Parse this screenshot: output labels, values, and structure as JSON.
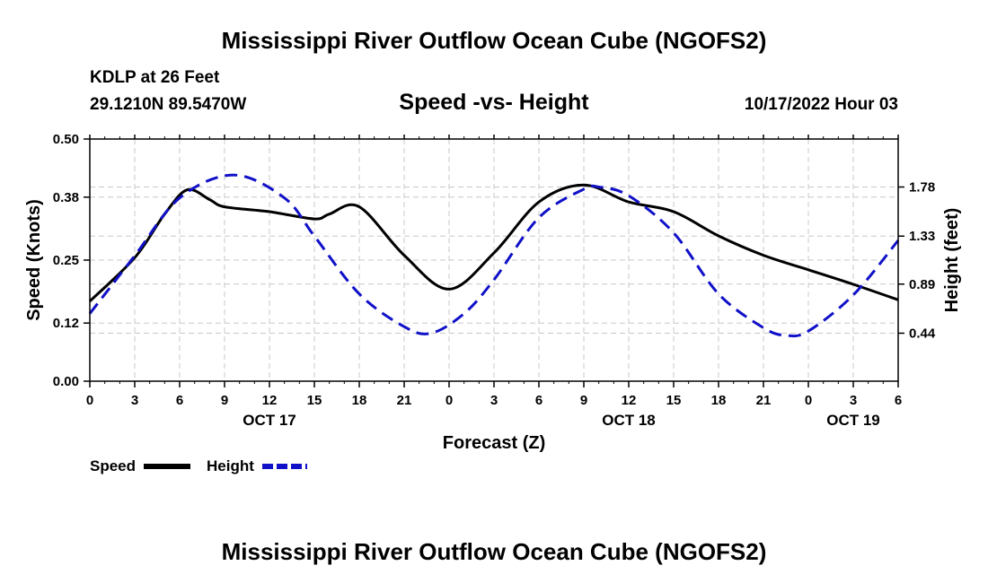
{
  "page_title": "Mississippi River Outflow Ocean Cube (NGOFS2)",
  "station": "KDLP at 26 Feet",
  "coords": "29.1210N  89.5470W",
  "subtitle": "Speed -vs- Height",
  "timestamp": "10/17/2022 Hour 03",
  "footer_title": "Mississippi River Outflow Ocean Cube (NGOFS2)",
  "colors": {
    "speed": "#000000",
    "height": "#1010c8",
    "grid": "#c8c8c8"
  },
  "chart_data": {
    "type": "line",
    "title": "Speed -vs- Height",
    "xlabel": "Forecast (Z)",
    "ylabel": "Speed (Knots)",
    "ylabel_right": "Height (feet)",
    "xlim": [
      0,
      54
    ],
    "x_ticks": [
      0,
      3,
      6,
      9,
      12,
      15,
      18,
      21,
      24,
      27,
      30,
      33,
      36,
      39,
      42,
      45,
      48,
      51,
      54
    ],
    "x_tick_labels": [
      "0",
      "3",
      "6",
      "9",
      "12",
      "15",
      "18",
      "21",
      "0",
      "3",
      "6",
      "9",
      "12",
      "15",
      "18",
      "21",
      "0",
      "3",
      "6"
    ],
    "day_labels": [
      {
        "x": 12,
        "label": "OCT 17"
      },
      {
        "x": 36,
        "label": "OCT 18"
      },
      {
        "x": 51,
        "label": "OCT 19"
      }
    ],
    "ylim": [
      0,
      0.5
    ],
    "y_ticks": [
      0.0,
      0.12,
      0.25,
      0.38,
      0.5
    ],
    "y_tick_labels": [
      "0.00",
      "0.12",
      "0.25",
      "0.38",
      "0.50"
    ],
    "y2lim": [
      0,
      2.22
    ],
    "y2_ticks": [
      0.44,
      0.89,
      1.33,
      1.78
    ],
    "y2_tick_labels": [
      "0.44",
      "0.89",
      "1.33",
      "1.78"
    ],
    "legend": [
      {
        "name": "Speed",
        "style": "solid"
      },
      {
        "name": "Height",
        "style": "dashed"
      }
    ],
    "series": [
      {
        "name": "Speed",
        "axis": "left",
        "x": [
          0,
          3,
          5,
          6.5,
          8,
          9,
          12,
          15,
          16,
          18,
          21,
          24,
          27,
          30,
          33,
          36,
          39,
          42,
          45,
          48,
          51,
          54
        ],
        "values": [
          0.165,
          0.255,
          0.345,
          0.395,
          0.375,
          0.36,
          0.35,
          0.335,
          0.345,
          0.36,
          0.26,
          0.19,
          0.265,
          0.37,
          0.405,
          0.37,
          0.35,
          0.3,
          0.26,
          0.23,
          0.2,
          0.168
        ]
      },
      {
        "name": "Height",
        "axis": "right",
        "x": [
          0,
          3,
          6,
          9.6,
          13,
          15,
          18,
          21,
          22.8,
          25,
          27,
          30,
          33,
          34,
          36,
          39,
          42,
          45,
          46.5,
          48,
          51,
          54
        ],
        "values": [
          0.62,
          1.15,
          1.68,
          1.89,
          1.68,
          1.33,
          0.8,
          0.5,
          0.44,
          0.62,
          0.93,
          1.5,
          1.76,
          1.78,
          1.7,
          1.36,
          0.8,
          0.49,
          0.42,
          0.46,
          0.79,
          1.29
        ]
      }
    ]
  }
}
